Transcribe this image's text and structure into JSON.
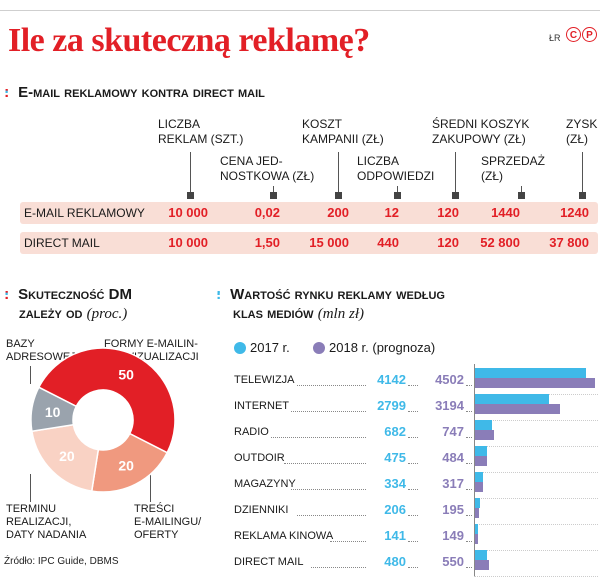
{
  "title": "Ile za skuteczną reklamę?",
  "credit": "ŁR",
  "cp_logo": "C P",
  "section1": {
    "bullet": ":",
    "title": "E-mail reklamowy kontra direct mail",
    "headers": [
      "LICZBA REKLAM (SZT.)",
      "CENA JEDNOSTKOWA (ZŁ)",
      "KOSZT KAMPANII (ZŁ)",
      "LICZBA ODPOWIEDZI",
      "ŚREDNI KOSZYK ZAKUPOWY (ZŁ)",
      "SPRZEDAŻ (ZŁ)",
      "ZYSK (ZŁ)"
    ],
    "header_lines": [
      [
        "LICZBA",
        "REKLAM (SZT.)"
      ],
      [
        "CENA JED-",
        "NOSTKOWA (ZŁ)"
      ],
      [
        "KOSZT",
        "KAMPANII (ZŁ)"
      ],
      [
        "LICZBA",
        "ODPOWIEDZI"
      ],
      [
        "ŚREDNI KOSZYK",
        "ZAKUPOWY (ZŁ)"
      ],
      [
        "SPRZEDAŻ",
        "(ZŁ)"
      ],
      [
        "ZYSK",
        "(ZŁ)"
      ]
    ],
    "rows": [
      {
        "label": "E-MAIL REKLAMOWY",
        "values": [
          "10 000",
          "0,02",
          "200",
          "12",
          "120",
          "1440",
          "1240"
        ]
      },
      {
        "label": "DIRECT MAIL",
        "values": [
          "10 000",
          "1,50",
          "15 000",
          "440",
          "120",
          "52 800",
          "37 800"
        ]
      }
    ]
  },
  "section2": {
    "bullet": ":",
    "title_main": "Skuteczność DM",
    "title_sub": "zależy od",
    "unit": "(proc.)",
    "label_lines": {
      "bazy": [
        "BAZY",
        "ADRESOWEJ"
      ],
      "formy": [
        "FORMY E-MAILIN-",
        "GU/WIZUALIZACJI"
      ],
      "terminu": [
        "TERMINU",
        "REALIZACJI,",
        "DATY NADANIA"
      ],
      "tresci": [
        "TREŚCI",
        "E-MAILINGU/",
        "OFERTY"
      ]
    },
    "colors": {
      "bazy": "#e21f26",
      "formy": "#f0997f",
      "tresci": "#f9d2c4",
      "terminu": "#9aa3ad"
    }
  },
  "section3": {
    "bullet": ":",
    "title_line1": "Wartość rynku reklamy według",
    "title_line2": "klas mediów",
    "unit": "(mln zł)",
    "legend": [
      "2017 r.",
      "2018 r. (prognoza)"
    ],
    "colors": {
      "2017": "#3fb9e8",
      "2018": "#8a7db8"
    }
  },
  "chart_data": [
    {
      "type": "pie",
      "title": "Skuteczność DM zależy od (proc.)",
      "labels": [
        "BAZY ADRESOWEJ",
        "FORMY E-MAILINGU/WIZUALIZACJI",
        "TREŚCI E-MAILINGU/OFERTY",
        "TERMINU REALIZACJI, DATY NADANIA"
      ],
      "values": [
        50,
        20,
        20,
        10
      ]
    },
    {
      "type": "bar",
      "title": "Wartość rynku reklamy według klas mediów (mln zł)",
      "categories": [
        "TELEWIZJA",
        "INTERNET",
        "RADIO",
        "OUTDOIR",
        "MAGAZYNY",
        "DZIENNIKI",
        "REKLAMA KINOWA",
        "DIRECT MAIL"
      ],
      "series": [
        {
          "name": "2017 r.",
          "values": [
            4142,
            2799,
            682,
            475,
            334,
            206,
            141,
            480
          ]
        },
        {
          "name": "2018 r. (prognoza)",
          "values": [
            4502,
            3194,
            747,
            484,
            317,
            195,
            149,
            550
          ]
        }
      ],
      "xlim": [
        0,
        4600
      ]
    }
  ],
  "source": "Źródło: IPC Guide, DBMS"
}
